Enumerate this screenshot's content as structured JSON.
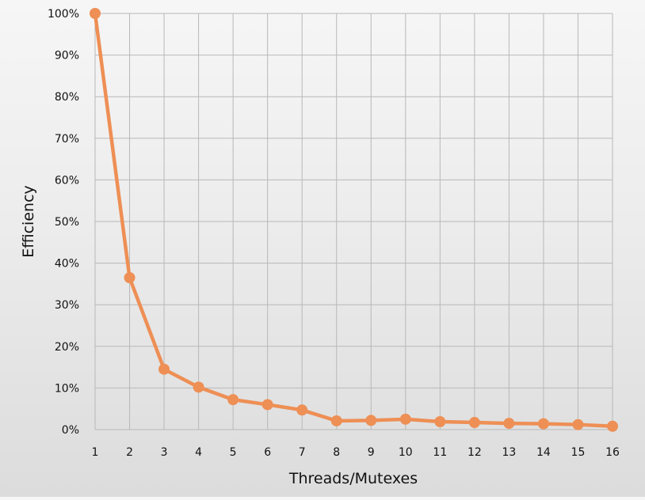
{
  "chart_data": {
    "type": "line",
    "xlabel": "Threads/Mutexes",
    "ylabel": "Efficiency",
    "x": [
      1,
      2,
      3,
      4,
      5,
      6,
      7,
      8,
      9,
      10,
      11,
      12,
      13,
      14,
      15,
      16
    ],
    "series": [
      {
        "values": [
          100,
          36.5,
          14.5,
          10.2,
          7.2,
          6.0,
          4.7,
          2.1,
          2.2,
          2.5,
          1.9,
          1.7,
          1.5,
          1.4,
          1.2,
          0.8
        ]
      }
    ],
    "xlim": [
      1,
      16
    ],
    "ylim": [
      0,
      100
    ],
    "yticks": [
      "0%",
      "10%",
      "20%",
      "30%",
      "40%",
      "50%",
      "60%",
      "70%",
      "80%",
      "90%",
      "100%"
    ],
    "xticks": [
      "1",
      "2",
      "3",
      "4",
      "5",
      "6",
      "7",
      "8",
      "9",
      "10",
      "11",
      "12",
      "13",
      "14",
      "15",
      "16"
    ],
    "grid": true,
    "line_color": "#ee8f55",
    "grid_color": "#b8b8b8"
  }
}
